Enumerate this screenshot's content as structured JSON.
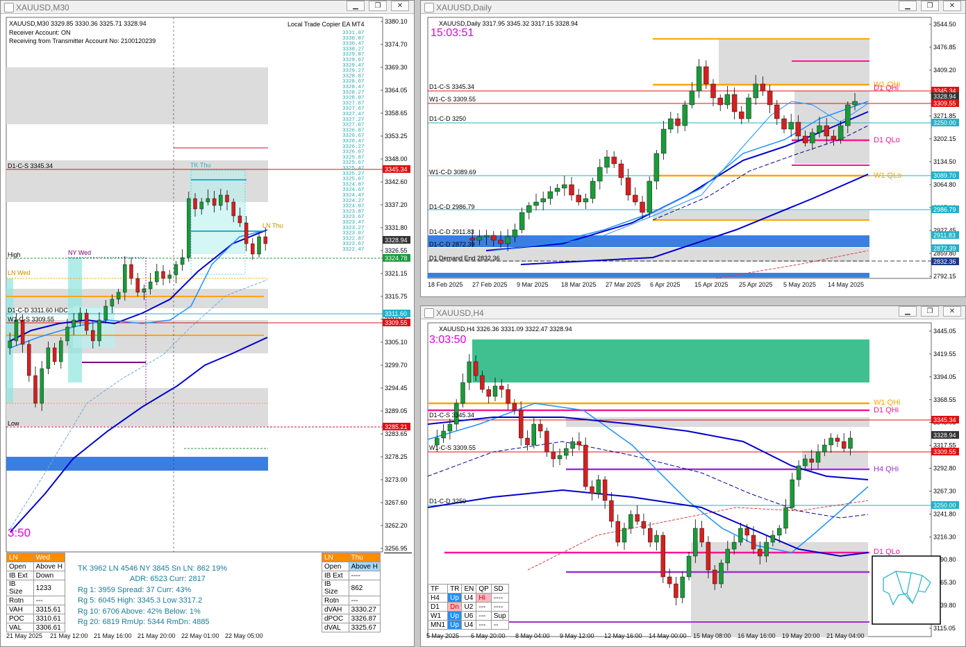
{
  "windows": {
    "m30": {
      "title": "XAUUSD,M30",
      "header": "XAUUSD,M30  3329.85 3330.36 3325.71 3328.94",
      "receiver": "Receiver Account: ON",
      "receiving": "Receiving from Transmitter Account No: 2100120239",
      "copier": "Local Trade Copier EA MT4",
      "timer": "3:50",
      "labels": {
        "d1cs": "D1-C-S 3345.34",
        "tk": "TK Thu",
        "ln_thu": "LN Thu",
        "high": "High",
        "ny_wed": "NY Wed",
        "ln_wed": "LN Wed",
        "d1cd": "D1-C-D 3311.60 HDC",
        "w1cs": "W1-C-S 3309.55",
        "low": "Low"
      },
      "price_ticks": [
        "3380.10",
        "3374.70",
        "3369.30",
        "3364.05",
        "3358.65",
        "3353.25",
        "3348.00",
        "3342.60",
        "3337.20",
        "3331.80",
        "3326.55",
        "3321.15",
        "3315.75",
        "3310.35",
        "3305.10",
        "3299.70",
        "3294.45",
        "3289.05",
        "3283.65",
        "3278.25",
        "3273.00",
        "3267.60",
        "3262.20",
        "3256.95"
      ],
      "price_tags": [
        "3345.34",
        "3328.94",
        "3324.78",
        "3311.60",
        "3309.55",
        "3285.21"
      ],
      "time_ticks": [
        "21 May 2025",
        "21 May 12:00",
        "21 May 16:00",
        "21 May 20:00",
        "22 May 01:00",
        "22 May 05:00"
      ],
      "copier_list": [
        "3331.07",
        "3330.87",
        "3330.47",
        "3330.27",
        "3329.87",
        "3329.67",
        "3329.47",
        "3329.27",
        "3328.87",
        "3328.67",
        "3328.47",
        "3328.27",
        "3328.07",
        "3327.87",
        "3327.67",
        "3327.47",
        "3327.27",
        "3327.07",
        "3326.87",
        "3326.67",
        "3326.47",
        "3326.27",
        "3326.07",
        "3325.87",
        "3325.67",
        "3325.47",
        "3325.27",
        "3325.07",
        "3324.87",
        "3324.67",
        "3324.47",
        "3324.27",
        "3324.07",
        "3323.87",
        "3323.67",
        "3323.47",
        "3323.27",
        "3323.07",
        "3322.87",
        "3322.67",
        "3322.47"
      ],
      "left_table": {
        "head": [
          "LN",
          "Wed"
        ],
        "rows": [
          [
            "Open",
            "Above H"
          ],
          [
            "IB Ext",
            "Down"
          ],
          [
            "IB Size",
            "1233"
          ],
          [
            "Rotn",
            "---"
          ],
          [
            "VAH",
            "3315.61"
          ],
          [
            "POC",
            "3310.61"
          ],
          [
            "VAL",
            "3306.61"
          ]
        ]
      },
      "right_table": {
        "head": [
          "LN",
          "Thu"
        ],
        "rows": [
          [
            "Open",
            "Above H"
          ],
          [
            "IB Ext",
            "----"
          ],
          [
            "IB Size",
            "862"
          ],
          [
            "Rotn",
            "---"
          ],
          [
            "dVAH",
            "3330.27"
          ],
          [
            "dPOC",
            "3326.87"
          ],
          [
            "dVAL",
            "3325.67"
          ]
        ]
      },
      "stats": {
        "line1": "TK  3962  LN  4546  NY  3845     Sn LN:  862   19%",
        "line2": "ADR:   6523    Curr:    2817",
        "line3": "Rg  1:   3959   Spread:  37     Curr:    43%",
        "line4": "Rg  5:   6045   High:  3345.3    Low   3317.2",
        "line5": "Rg 10:  6706   Above:   42%     Below:    1%",
        "line6": "Rg 20:  6819   RmUp: 5344     RmDn: 4885"
      }
    },
    "daily": {
      "title": "XAUUSD,Daily",
      "header": "XAUUSD,Daily  3317.95 3345.32 3317.15 3328.94",
      "timer": "15:03:51",
      "labels": {
        "d1cs": "D1-C-S 3345.34",
        "w1cs": "W1-C-S 3309.55",
        "d1cd": "D1-C-D 3250",
        "w1cd": "W1-C-D 3089.69",
        "d1cd2": "D1-C-D 2986.79",
        "d1cd3": "D1-C-D 2911.83",
        "d1cd4": "D1-C-D 2872.39",
        "demand": "D1 Demand End 2832.36",
        "w1qhi": "W1 QHi",
        "d1qhi": "D1 QHi",
        "d1qlo": "D1 QLo",
        "w1qlo": "W1 QLo"
      },
      "price_ticks": [
        "3544.50",
        "3476.85",
        "3409.20",
        "3340.35",
        "3271.85",
        "3202.15",
        "3134.50",
        "3064.80",
        "2995.10",
        "2927.45",
        "2859.80",
        "2792.15"
      ],
      "price_tags": [
        "3345.34",
        "3328.94",
        "3309.55",
        "3250.00",
        "3089.70",
        "2986.79",
        "2911.83",
        "2872.39",
        "2832.36"
      ],
      "time_ticks": [
        "18 Feb 2025",
        "27 Feb 2025",
        "9 Mar 2025",
        "18 Mar 2025",
        "27 Mar 2025",
        "6 Apr 2025",
        "15 Apr 2025",
        "25 Apr 2025",
        "5 May 2025",
        "14 May 2025"
      ]
    },
    "h4": {
      "title": "XAUUSD,H4",
      "header": "XAUUSD,H4  3326.36 3331.09 3322.47 3328.94",
      "timer": "3:03:50",
      "labels": {
        "d1cs": "D1-C-S 3345.34",
        "w1cs": "W1-C-S 3309.55",
        "d1cd": "D1-C-D 3250",
        "w1qhi": "W1 QHi",
        "d1qhi": "D1 QHi",
        "h4qhi": "H4 QHi",
        "d1qlo": "D1 QLo"
      },
      "price_ticks": [
        "3445.05",
        "3419.55",
        "3394.05",
        "3368.55",
        "3343.05",
        "3317.55",
        "3292.80",
        "3267.30",
        "3241.80",
        "3216.30",
        "3190.80",
        "3165.30",
        "3139.80",
        "3115.05"
      ],
      "price_tags": [
        "3345.34",
        "3328.94",
        "3309.55",
        "3250.00"
      ],
      "time_ticks": [
        "5 May 2025",
        "6 May 20:00",
        "8 May 04:00",
        "9 May 12:00",
        "12 May 16:00",
        "14 May 00:00",
        "15 May 08:00",
        "16 May 16:00",
        "19 May 20:00",
        "21 May 04:00"
      ],
      "tf_table": {
        "head": [
          "TF",
          "TR",
          "EN",
          "QP",
          "SD"
        ],
        "rows": [
          [
            "H4",
            "Up",
            "U4",
            "Hi",
            "----"
          ],
          [
            "D1",
            "Dn",
            "U2",
            "---",
            "----"
          ],
          [
            "W1",
            "Up",
            "U6",
            "---",
            "Sup"
          ],
          [
            "MN1",
            "Up",
            "U4",
            "---",
            "--"
          ]
        ]
      }
    }
  },
  "colors": {
    "bull": "#1a9a3a",
    "bear": "#d42020",
    "orange": "#ffa500",
    "magenta": "#ff1493",
    "purple": "#9932cc",
    "blue": "#0000cd",
    "lightblue": "#1e90ff",
    "red": "#e01010",
    "cyan": "#20b2c8",
    "teal": "#3cc08c",
    "gray": "#dcdcdc"
  },
  "icons": {
    "minimize": "minimize-icon",
    "restore": "restore-icon",
    "close": "close-icon",
    "logo": "bear-bull-logo"
  }
}
